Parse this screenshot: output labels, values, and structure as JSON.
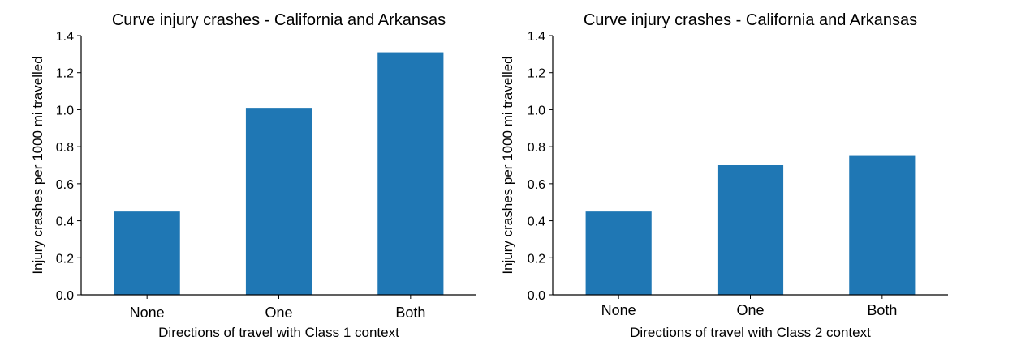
{
  "chart_data": [
    {
      "type": "bar",
      "title": "Curve injury crashes - California and Arkansas",
      "xlabel": "Directions of travel with Class 1 context",
      "ylabel": "Injury crashes per 1000 mi travelled",
      "categories": [
        "None",
        "One",
        "Both"
      ],
      "values": [
        0.45,
        1.01,
        1.31
      ],
      "ylim": [
        0,
        1.4
      ],
      "yticks": [
        "0.0",
        "0.2",
        "0.4",
        "0.6",
        "0.8",
        "1.0",
        "1.2",
        "1.4"
      ],
      "color": "#1f77b4",
      "grid": false,
      "legend": "none"
    },
    {
      "type": "bar",
      "title": "Curve injury crashes - California and Arkansas",
      "xlabel": "Directions of travel with Class 2 context",
      "ylabel": "Injury crashes per 1000 mi travelled",
      "categories": [
        "None",
        "One",
        "Both"
      ],
      "values": [
        0.45,
        0.7,
        0.75
      ],
      "ylim": [
        0,
        1.4
      ],
      "yticks": [
        "0.0",
        "0.2",
        "0.4",
        "0.6",
        "0.8",
        "1.0",
        "1.2",
        "1.4"
      ],
      "color": "#1f77b4",
      "grid": false,
      "legend": "none"
    }
  ]
}
